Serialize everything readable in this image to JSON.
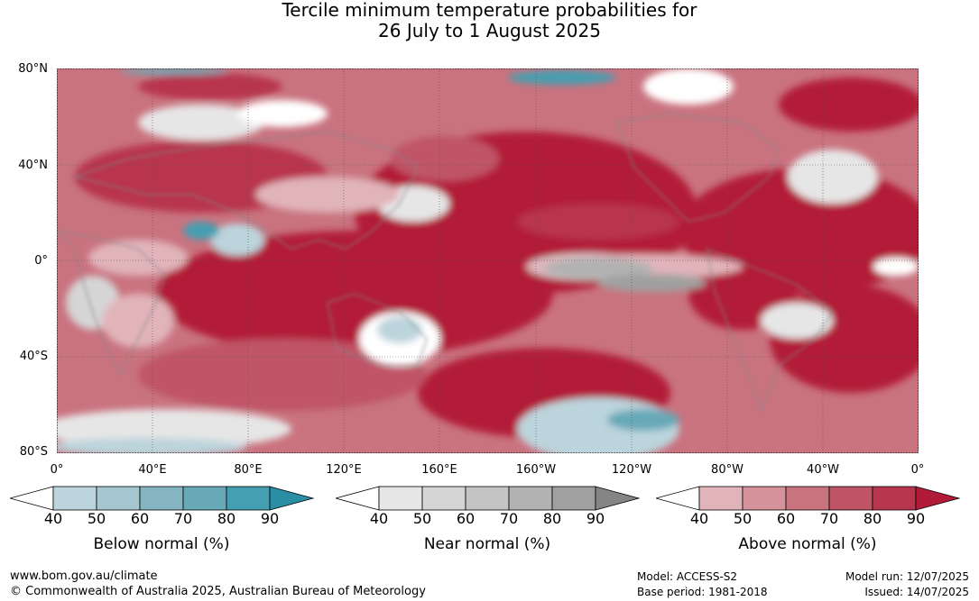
{
  "title": {
    "line1": "Tercile minimum temperature probabilities for",
    "line2": "26 July to 1 August 2025"
  },
  "map": {
    "lat_labels": [
      "80°N",
      "40°N",
      "0°",
      "40°S",
      "80°S"
    ],
    "lon_labels": [
      "0°",
      "40°E",
      "80°E",
      "120°E",
      "160°E",
      "160°W",
      "120°W",
      "80°W",
      "40°W",
      "0°"
    ]
  },
  "colorbars": [
    {
      "label": "Below normal (%)",
      "ticks": [
        "40",
        "50",
        "60",
        "70",
        "80",
        "90"
      ],
      "colors": [
        "#ffffff",
        "#bcd4dc",
        "#a5c7cf",
        "#86b5c2",
        "#68a9b8",
        "#449fb1",
        "#2a8fa4"
      ]
    },
    {
      "label": "Near normal (%)",
      "ticks": [
        "40",
        "50",
        "60",
        "70",
        "80",
        "90"
      ],
      "colors": [
        "#ffffff",
        "#e6e6e6",
        "#d5d5d5",
        "#c4c4c4",
        "#b2b2b2",
        "#a0a0a0",
        "#858585"
      ]
    },
    {
      "label": "Above normal (%)",
      "ticks": [
        "40",
        "50",
        "60",
        "70",
        "80",
        "90"
      ],
      "colors": [
        "#ffffff",
        "#e1b4ba",
        "#d5929b",
        "#c9737f",
        "#c05467",
        "#b8364d",
        "#b21b37"
      ]
    }
  ],
  "footer": {
    "website": "www.bom.gov.au/climate",
    "copyright": "© Commonwealth of Australia 2025, Australian Bureau of Meteorology",
    "model": "Model: ACCESS-S2",
    "base_period": "Base period: 1981-2018",
    "model_run": "Model run: 12/07/2025",
    "issued": "Issued: 14/07/2025"
  }
}
